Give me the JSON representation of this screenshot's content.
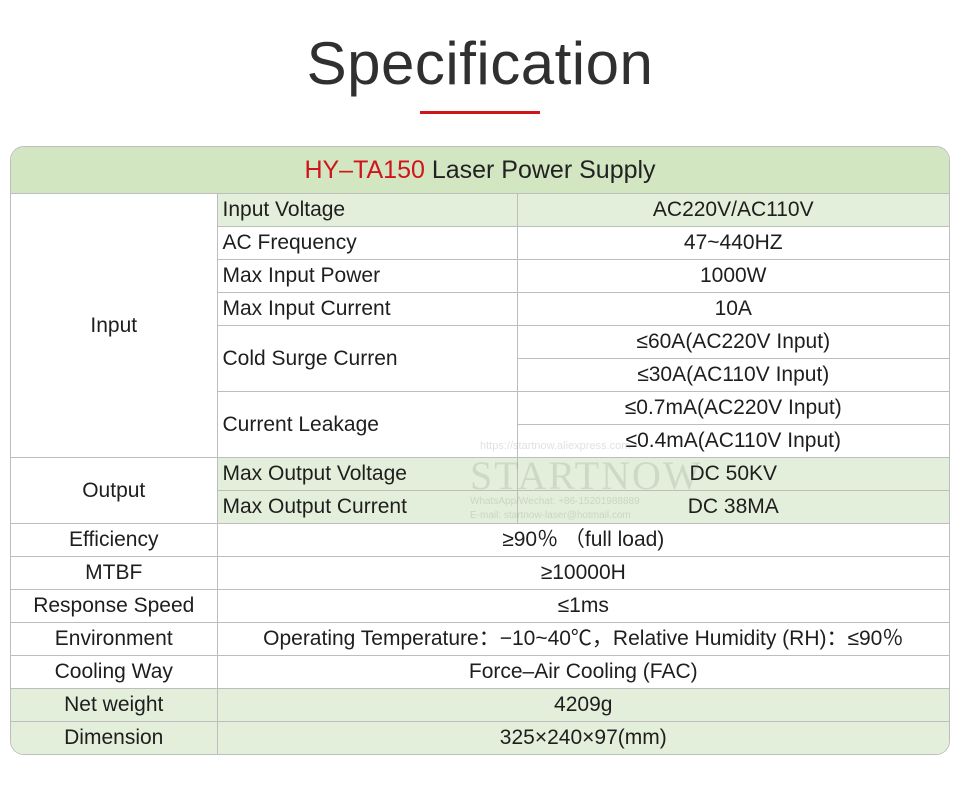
{
  "header": {
    "title": "Specification"
  },
  "table": {
    "caption_model": "HY–TA150",
    "caption_name": " Laser Power Supply",
    "input": {
      "category": "Input",
      "input_voltage": {
        "label": "Input Voltage",
        "value": "AC220V/AC110V"
      },
      "ac_frequency": {
        "label": "AC Frequency",
        "value": "47~440HZ"
      },
      "max_input_power": {
        "label": "Max Input Power",
        "value": "1000W"
      },
      "max_input_current": {
        "label": "Max Input Current",
        "value": "10A"
      },
      "cold_surge": {
        "label": "Cold Surge Curren",
        "value_1": "≤60A(AC220V Input)",
        "value_2": "≤30A(AC110V Input)"
      },
      "current_leakage": {
        "label": "Current Leakage",
        "value_1": "≤0.7mA(AC220V Input)",
        "value_2": "≤0.4mA(AC110V Input)"
      }
    },
    "output": {
      "category": "Output",
      "max_output_voltage": {
        "label": "Max Output Voltage",
        "value": "DC 50KV"
      },
      "max_output_current": {
        "label": "Max Output Current",
        "value": "DC 38MA"
      }
    },
    "efficiency": {
      "label": "Efficiency",
      "value": "≥90％ （full load)"
    },
    "mtbf": {
      "label": "MTBF",
      "value": "≥10000H"
    },
    "response_speed": {
      "label": "Response Speed",
      "value": "≤1ms"
    },
    "environment": {
      "label": "Environment",
      "value": "Operating Temperature：−10~40℃，Relative Humidity (RH)：≤90％"
    },
    "cooling_way": {
      "label": "Cooling Way",
      "value": "Force–Air Cooling (FAC)"
    },
    "net_weight": {
      "label": "Net weight",
      "value": "4209g"
    },
    "dimension": {
      "label": "Dimension",
      "value": "325×240×97(mm)"
    }
  },
  "watermark": {
    "url": "https://startnow.aliexpress.com",
    "brand": "STARTNOW",
    "contact": "WhatsApp/Wechat: +86-15201988889",
    "email": "E-mail: startnow-laser@hotmail.com"
  }
}
